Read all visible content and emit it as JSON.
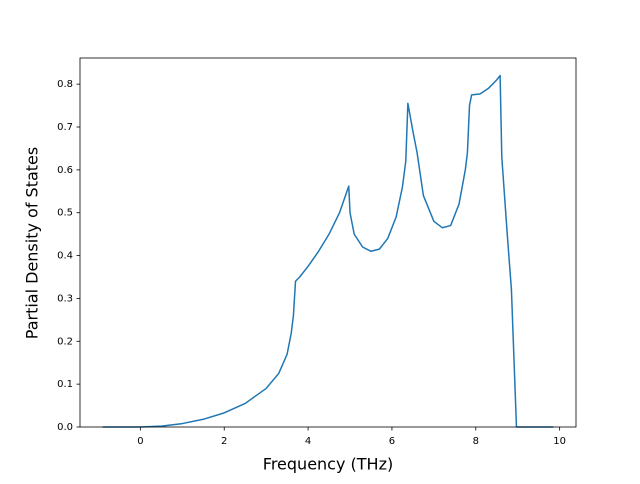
{
  "chart_data": {
    "type": "line",
    "x_label": "Frequency (THz)",
    "y_label": "Partial Density of States",
    "x": [
      -0.9,
      0,
      0.5,
      1,
      1.5,
      2,
      2.5,
      3,
      3.3,
      3.5,
      3.6,
      3.65,
      3.7,
      3.8,
      4,
      4.25,
      4.5,
      4.75,
      4.97,
      5.0,
      5.1,
      5.3,
      5.5,
      5.7,
      5.9,
      6.1,
      6.25,
      6.33,
      6.38,
      6.5,
      6.6,
      6.75,
      7.0,
      7.2,
      7.4,
      7.6,
      7.75,
      7.8,
      7.85,
      7.9,
      8.1,
      8.3,
      8.5,
      8.58,
      8.62,
      8.75,
      8.85,
      8.97,
      9.85
    ],
    "series": [
      {
        "color": "#1f77b4",
        "values": [
          0,
          0,
          0.002,
          0.008,
          0.018,
          0.033,
          0.055,
          0.09,
          0.125,
          0.17,
          0.22,
          0.26,
          0.34,
          0.35,
          0.375,
          0.41,
          0.45,
          0.5,
          0.562,
          0.5,
          0.45,
          0.42,
          0.41,
          0.415,
          0.44,
          0.49,
          0.56,
          0.62,
          0.755,
          0.69,
          0.64,
          0.54,
          0.48,
          0.465,
          0.47,
          0.52,
          0.6,
          0.64,
          0.75,
          0.775,
          0.777,
          0.79,
          0.81,
          0.82,
          0.63,
          0.45,
          0.32,
          0,
          0
        ]
      }
    ],
    "xlim": [
      -1.44,
      10.39
    ],
    "xticks": [
      0,
      2,
      4,
      6,
      8,
      10
    ],
    "ylim": [
      0,
      0.861
    ],
    "yticks": [
      {
        "value": 0,
        "label": "0.0"
      },
      0.1,
      0.2,
      0.3,
      0.4,
      0.5,
      0.6,
      0.7,
      0.8
    ],
    "grid": false
  }
}
